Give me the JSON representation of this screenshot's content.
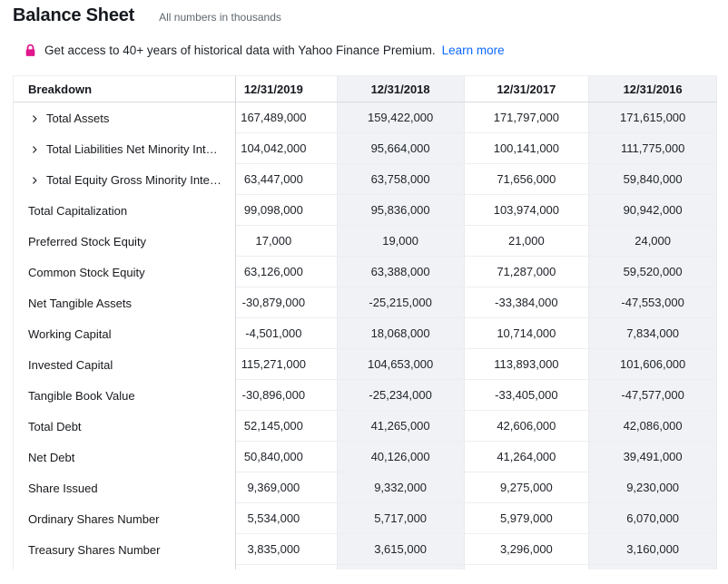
{
  "page": {
    "title": "Balance Sheet",
    "subtitle": "All numbers in thousands"
  },
  "banner": {
    "message": "Get access to 40+ years of historical data with Yahoo Finance Premium.",
    "link_label": "Learn more"
  },
  "colors": {
    "link_blue": "#0f69ff",
    "lock_pink": "#e0168c",
    "column_stripe": "#f0f2f5",
    "header_text": "#16191f",
    "body_text": "#20242a",
    "row_divider": "#edeef1",
    "sticky_column_border": "#d3d7dc"
  },
  "icons": {
    "lock": "lock-icon",
    "expand_chevron": "chevron-right-icon"
  },
  "table": {
    "columns": [
      "Breakdown",
      "12/31/2019",
      "12/31/2018",
      "12/31/2017",
      "12/31/2016"
    ],
    "rows": [
      {
        "label": "Total Assets",
        "expandable": true,
        "values": [
          "167,489,000",
          "159,422,000",
          "171,797,000",
          "171,615,000"
        ]
      },
      {
        "label": "Total Liabilities Net Minority Int…",
        "expandable": true,
        "values": [
          "104,042,000",
          "95,664,000",
          "100,141,000",
          "111,775,000"
        ]
      },
      {
        "label": "Total Equity Gross Minority Inte…",
        "expandable": true,
        "values": [
          "63,447,000",
          "63,758,000",
          "71,656,000",
          "59,840,000"
        ]
      },
      {
        "label": "Total Capitalization",
        "expandable": false,
        "values": [
          "99,098,000",
          "95,836,000",
          "103,974,000",
          "90,942,000"
        ]
      },
      {
        "label": "Preferred Stock Equity",
        "expandable": false,
        "values": [
          "17,000",
          "19,000",
          "21,000",
          "24,000"
        ]
      },
      {
        "label": "Common Stock Equity",
        "expandable": false,
        "values": [
          "63,126,000",
          "63,388,000",
          "71,287,000",
          "59,520,000"
        ]
      },
      {
        "label": "Net Tangible Assets",
        "expandable": false,
        "values": [
          "-30,879,000",
          "-25,215,000",
          "-33,384,000",
          "-47,553,000"
        ]
      },
      {
        "label": "Working Capital",
        "expandable": false,
        "values": [
          "-4,501,000",
          "18,068,000",
          "10,714,000",
          "7,834,000"
        ]
      },
      {
        "label": "Invested Capital",
        "expandable": false,
        "values": [
          "115,271,000",
          "104,653,000",
          "113,893,000",
          "101,606,000"
        ]
      },
      {
        "label": "Tangible Book Value",
        "expandable": false,
        "values": [
          "-30,896,000",
          "-25,234,000",
          "-33,405,000",
          "-47,577,000"
        ]
      },
      {
        "label": "Total Debt",
        "expandable": false,
        "values": [
          "52,145,000",
          "41,265,000",
          "42,606,000",
          "42,086,000"
        ]
      },
      {
        "label": "Net Debt",
        "expandable": false,
        "values": [
          "50,840,000",
          "40,126,000",
          "41,264,000",
          "39,491,000"
        ]
      },
      {
        "label": "Share Issued",
        "expandable": false,
        "values": [
          "9,369,000",
          "9,332,000",
          "9,275,000",
          "9,230,000"
        ]
      },
      {
        "label": "Ordinary Shares Number",
        "expandable": false,
        "values": [
          "5,534,000",
          "5,717,000",
          "5,979,000",
          "6,070,000"
        ]
      },
      {
        "label": "Treasury Shares Number",
        "expandable": false,
        "values": [
          "3,835,000",
          "3,615,000",
          "3,296,000",
          "3,160,000"
        ]
      }
    ]
  }
}
